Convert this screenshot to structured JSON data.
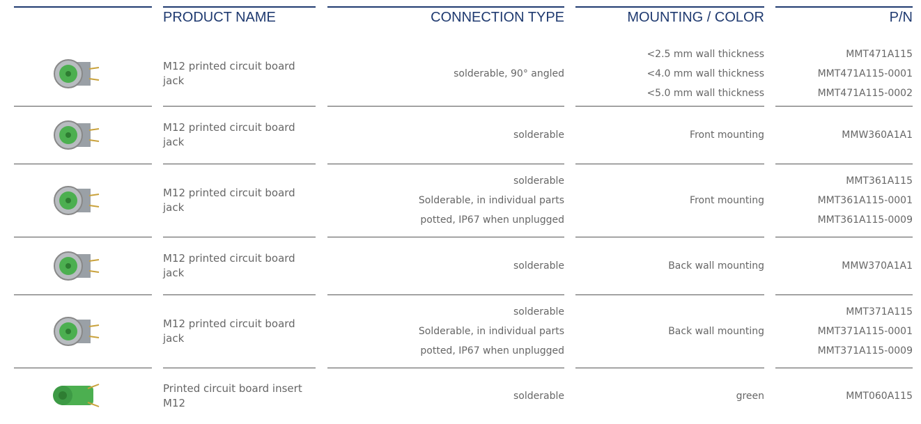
{
  "table": {
    "headers": [
      "PRODUCT NAME",
      "CONNECTION TYPE",
      "MOUNTING / COLOR",
      "P/N"
    ],
    "rows": [
      {
        "product_name": "M12 printed circuit board jack",
        "connection_type": [
          "solderable, 90° angled"
        ],
        "mounting_color": [
          "<2.5 mm wall thickness",
          "<4.0 mm wall thickness",
          "<5.0 mm wall thickness"
        ],
        "pn": [
          "MMT471A115",
          "MMT471A115-0001",
          "MMT471A115-0002"
        ]
      },
      {
        "product_name": "M12 printed circuit board jack",
        "connection_type": [
          "solderable"
        ],
        "mounting_color": [
          "Front mounting"
        ],
        "pn": [
          "MMW360A1A1"
        ]
      },
      {
        "product_name": "M12 printed circuit board jack",
        "connection_type": [
          "solderable",
          "Solderable, in individual parts",
          "potted, IP67 when unplugged"
        ],
        "mounting_color": [
          "Front mounting"
        ],
        "pn": [
          "MMT361A115",
          "MMT361A115-0001",
          "MMT361A115-0009"
        ]
      },
      {
        "product_name": "M12 printed circuit board jack",
        "connection_type": [
          "solderable"
        ],
        "mounting_color": [
          "Back wall mounting"
        ],
        "pn": [
          "MMW370A1A1"
        ]
      },
      {
        "product_name": "M12 printed circuit board jack",
        "connection_type": [
          "solderable",
          "Solderable, in individual parts",
          "potted, IP67 when unplugged"
        ],
        "mounting_color": [
          "Back wall mounting"
        ],
        "pn": [
          "MMT371A115",
          "MMT371A115-0001",
          "MMT371A115-0009"
        ]
      },
      {
        "product_name": "Printed circuit board insert M12",
        "connection_type": [
          "solderable"
        ],
        "mounting_color": [
          "green"
        ],
        "pn": [
          "MMT060A115"
        ]
      }
    ]
  }
}
